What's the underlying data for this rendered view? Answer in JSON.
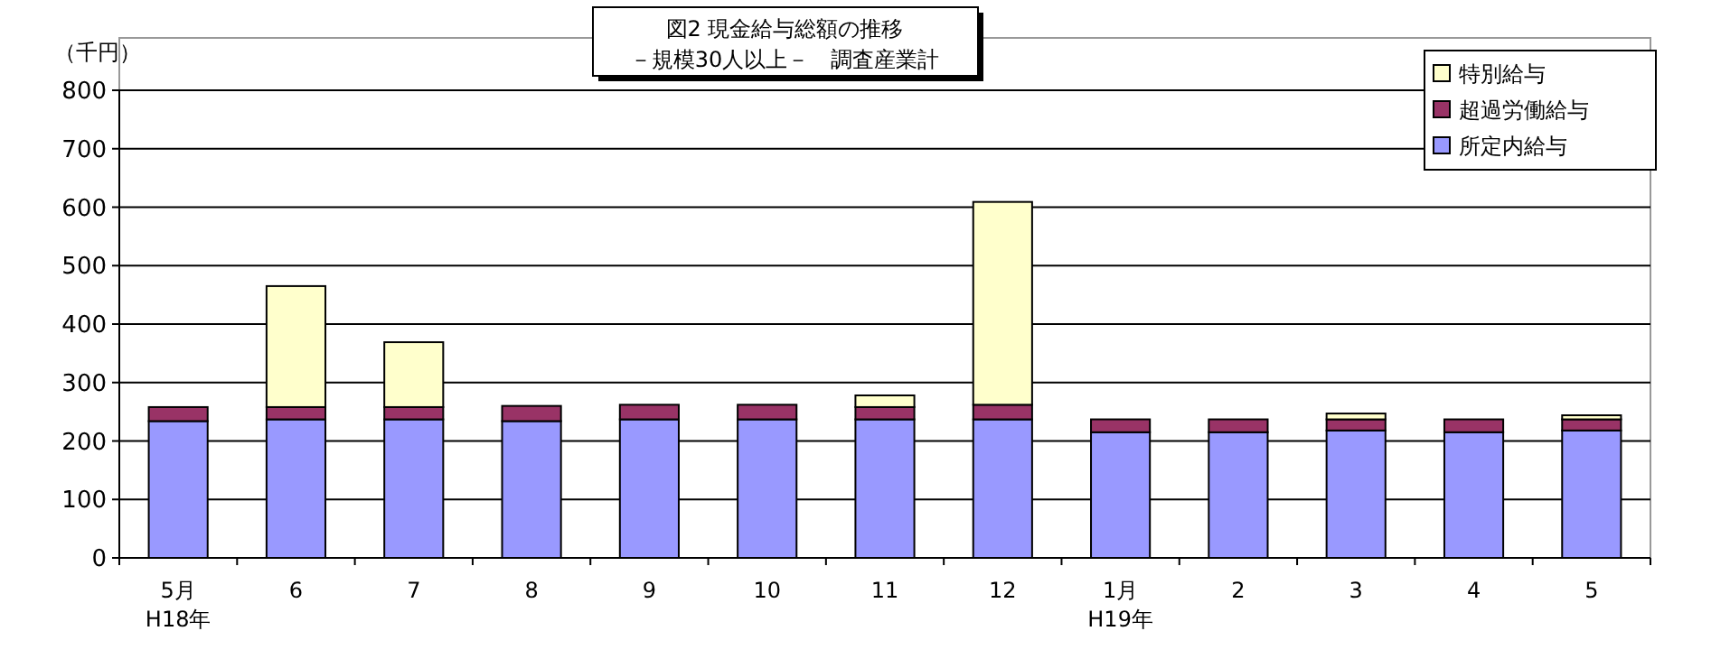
{
  "chart_data": {
    "type": "bar",
    "title": "図2  現金給与総額の推移",
    "subtitle": "－規模30人以上－　調査産業計",
    "ylabel": "（千円）",
    "categories": [
      "5月\nH18年",
      "6",
      "7",
      "8",
      "9",
      "10",
      "11",
      "12",
      "1月\nH19年",
      "2",
      "3",
      "4",
      "5"
    ],
    "stacked": true,
    "ylim": [
      0,
      800
    ],
    "yticks": [
      0,
      100,
      200,
      300,
      400,
      500,
      600,
      700,
      800
    ],
    "grid": "y",
    "legend": "top right",
    "series": [
      {
        "name": "所定内給与",
        "color": "#9999ff",
        "values": [
          234,
          237,
          237,
          234,
          237,
          237,
          237,
          237,
          215,
          215,
          218,
          215,
          218
        ]
      },
      {
        "name": "超過労働給与",
        "color": "#993366",
        "values": [
          24,
          21,
          21,
          26,
          25,
          25,
          21,
          25,
          22,
          22,
          19,
          22,
          19
        ]
      },
      {
        "name": "特別給与",
        "color": "#ffffcc",
        "values": [
          0,
          207,
          111,
          0,
          0,
          0,
          20,
          347,
          0,
          0,
          10,
          0,
          7
        ]
      }
    ]
  }
}
